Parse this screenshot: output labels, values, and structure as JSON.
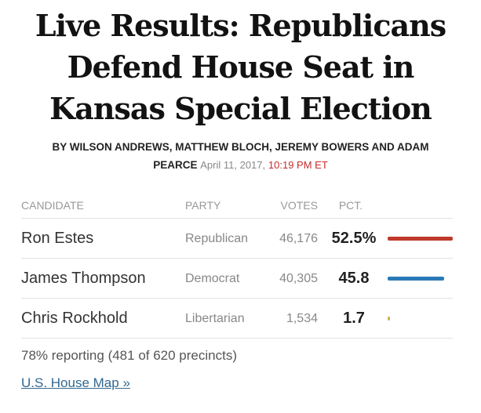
{
  "headline": {
    "line1": "Live Results: Republicans",
    "line2": "Defend House Seat in",
    "line3": "Kansas Special Election"
  },
  "byline": {
    "authors_line1": "By Wilson Andrews, Matthew Bloch, Jeremy Bowers and Adam",
    "authors_line2": "Pearce",
    "date": "April 11, 2017,",
    "time": "10:19 PM ET"
  },
  "table": {
    "headers": {
      "candidate": "CANDIDATE",
      "party": "PARTY",
      "votes": "VOTES",
      "pct": "PCT."
    },
    "rows": [
      {
        "candidate": "Ron Estes",
        "party": "Republican",
        "votes": "46,176",
        "pct": "52.5%",
        "pct_value": 52.5,
        "color": "#c0392b"
      },
      {
        "candidate": "James Thompson",
        "party": "Democrat",
        "votes": "40,305",
        "pct": "45.8",
        "pct_value": 45.8,
        "color": "#2a7ab8"
      },
      {
        "candidate": "Chris Rockhold",
        "party": "Libertarian",
        "votes": "1,534",
        "pct": "1.7",
        "pct_value": 1.7,
        "color": "#c9b458"
      }
    ]
  },
  "reporting": "78% reporting (481 of 620 precincts)",
  "map_link": "U.S. House Map »"
}
